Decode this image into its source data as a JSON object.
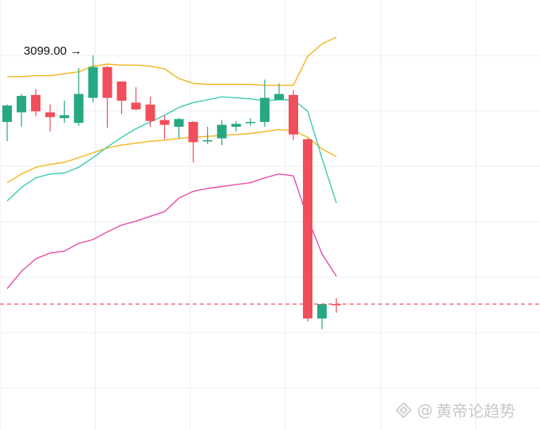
{
  "chart_data": {
    "type": "candlestick",
    "annotations": [
      {
        "text": "3099.00",
        "arrow": "→",
        "target_index": 6
      }
    ],
    "candles": [
      {
        "o": 3030,
        "h": 3048,
        "l": 3010,
        "c": 3047
      },
      {
        "o": 3040,
        "h": 3059,
        "l": 3025,
        "c": 3057
      },
      {
        "o": 3058,
        "h": 3064,
        "l": 3036,
        "c": 3041
      },
      {
        "o": 3040,
        "h": 3048,
        "l": 3020,
        "c": 3035
      },
      {
        "o": 3034,
        "h": 3052,
        "l": 3029,
        "c": 3037
      },
      {
        "o": 3029,
        "h": 3086,
        "l": 3026,
        "c": 3059
      },
      {
        "o": 3055,
        "h": 3099,
        "l": 3050,
        "c": 3087
      },
      {
        "o": 3087,
        "h": 3088,
        "l": 3024,
        "c": 3055
      },
      {
        "o": 3072,
        "h": 3072,
        "l": 3038,
        "c": 3052
      },
      {
        "o": 3050,
        "h": 3066,
        "l": 3042,
        "c": 3043
      },
      {
        "o": 3048,
        "h": 3056,
        "l": 3025,
        "c": 3031
      },
      {
        "o": 3032,
        "h": 3037,
        "l": 3012,
        "c": 3027
      },
      {
        "o": 3025,
        "h": 3034,
        "l": 3013,
        "c": 3033
      },
      {
        "o": 3030,
        "h": 3031,
        "l": 2988,
        "c": 3009
      },
      {
        "o": 3010,
        "h": 3025,
        "l": 3007,
        "c": 3011
      },
      {
        "o": 3013,
        "h": 3032,
        "l": 3006,
        "c": 3027
      },
      {
        "o": 3025,
        "h": 3031,
        "l": 3020,
        "c": 3028
      },
      {
        "o": 3029,
        "h": 3034,
        "l": 3026,
        "c": 3030
      },
      {
        "o": 3030,
        "h": 3074,
        "l": 3025,
        "c": 3055
      },
      {
        "o": 3053,
        "h": 3070,
        "l": 3053,
        "c": 3059
      },
      {
        "o": 3058,
        "h": 3063,
        "l": 3011,
        "c": 3017
      },
      {
        "o": 3012,
        "h": 3013,
        "l": 2823,
        "c": 2826
      },
      {
        "o": 2826,
        "h": 2841,
        "l": 2815,
        "c": 2841
      },
      {
        "o": 2841,
        "h": 2847,
        "l": 2832,
        "c": 2840
      }
    ],
    "bollinger_upper": [
      3077,
      3077,
      3078,
      3078,
      3080,
      3082,
      3088,
      3090,
      3089,
      3089,
      3088,
      3085,
      3075,
      3070,
      3069,
      3069,
      3069,
      3069,
      3068,
      3068,
      3068,
      3098,
      3111,
      3118
    ],
    "bollinger_middle": [
      2967,
      2976,
      2983,
      2986,
      2988,
      2993,
      2998,
      3003,
      3006,
      3008,
      3010,
      3011,
      3013,
      3014,
      3015,
      3016,
      3017,
      3018,
      3020,
      3022,
      3021,
      3014,
      3002,
      2994
    ],
    "bollinger_lower": [
      2857,
      2875,
      2888,
      2894,
      2896,
      2904,
      2908,
      2916,
      2923,
      2927,
      2932,
      2937,
      2951,
      2958,
      2961,
      2963,
      2965,
      2967,
      2972,
      2976,
      2974,
      2930,
      2893,
      2870
    ],
    "ma_short": [
      2948,
      2962,
      2972,
      2976,
      2977,
      2983,
      2993,
      3004,
      3014,
      3023,
      3030,
      3037,
      3045,
      3050,
      3053,
      3056,
      3055,
      3054,
      3052,
      3053,
      3053,
      3041,
      2992,
      2946
    ],
    "ref_price": 2841,
    "colors": {
      "up": "#26a882",
      "down": "#ef4e5a",
      "bollinger_upper": "#f5b51b",
      "bollinger_middle": "#f5b51b",
      "bollinger_lower": "#e64ea8",
      "ma_short": "#3ecbb0",
      "ref_line": "#ef4e5a",
      "grid": "#ececec"
    },
    "grid": true
  },
  "watermark": {
    "logo_icon": "diamond-logo-icon",
    "at": "@",
    "text": "黄帝论趋势"
  }
}
